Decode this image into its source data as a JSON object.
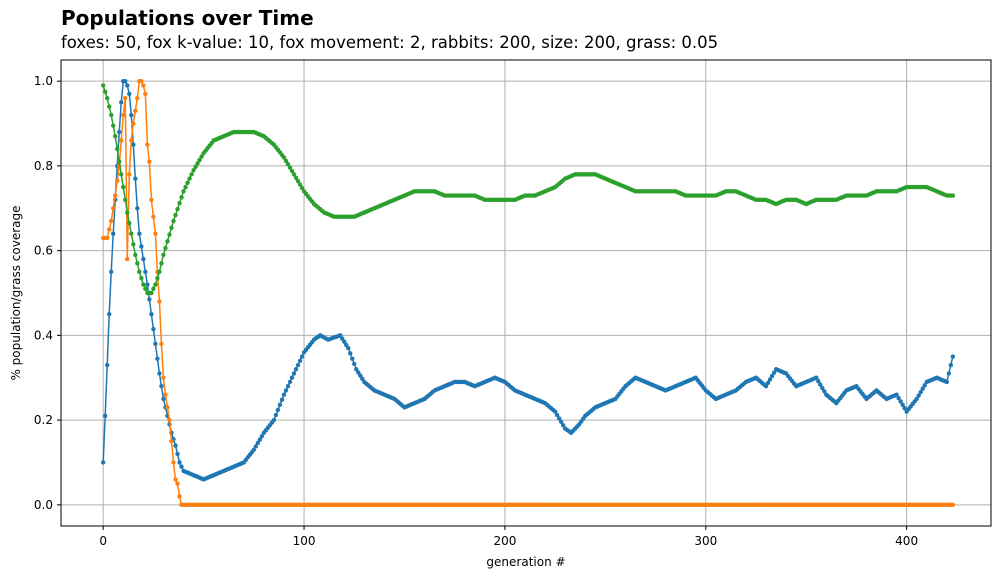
{
  "header": {
    "title": "Populations over Time",
    "subtitle": "foxes: 50, fox k-value: 10, fox movement: 2, rabbits: 200, size: 200, grass: 0.05"
  },
  "chart_data": {
    "type": "line",
    "title": "Populations over Time",
    "subtitle": "foxes: 50, fox k-value: 10, fox movement: 2, rabbits: 200, size: 200, grass: 0.05",
    "xlabel": "generation #",
    "ylabel": "% population/grass coverage",
    "xlim": [
      -21,
      442
    ],
    "ylim": [
      -0.05,
      1.05
    ],
    "xticks": [
      0,
      100,
      200,
      300,
      400
    ],
    "xtick_labels": [
      "0",
      "100",
      "200",
      "300",
      "400"
    ],
    "yticks": [
      0.0,
      0.2,
      0.4,
      0.6,
      0.8,
      1.0
    ],
    "ytick_labels": [
      "0.0",
      "0.2",
      "0.4",
      "0.6",
      "0.8",
      "1.0"
    ],
    "grid": true,
    "legend": "none",
    "marker": "dot",
    "series": [
      {
        "color": "#1f77b4",
        "points": [
          [
            0,
            0.1
          ],
          [
            1,
            0.21
          ],
          [
            2,
            0.33
          ],
          [
            3,
            0.45
          ],
          [
            4,
            0.55
          ],
          [
            5,
            0.64
          ],
          [
            6,
            0.72
          ],
          [
            7,
            0.8
          ],
          [
            8,
            0.88
          ],
          [
            9,
            0.95
          ],
          [
            10,
            1.0
          ],
          [
            11,
            1.0
          ],
          [
            12,
            0.99
          ],
          [
            13,
            0.97
          ],
          [
            14,
            0.92
          ],
          [
            15,
            0.85
          ],
          [
            16,
            0.77
          ],
          [
            17,
            0.7
          ],
          [
            18,
            0.64
          ],
          [
            20,
            0.58
          ],
          [
            22,
            0.52
          ],
          [
            24,
            0.45
          ],
          [
            26,
            0.38
          ],
          [
            28,
            0.31
          ],
          [
            30,
            0.25
          ],
          [
            32,
            0.21
          ],
          [
            34,
            0.17
          ],
          [
            36,
            0.14
          ],
          [
            38,
            0.1
          ],
          [
            40,
            0.08
          ],
          [
            45,
            0.07
          ],
          [
            50,
            0.06
          ],
          [
            55,
            0.07
          ],
          [
            60,
            0.08
          ],
          [
            65,
            0.09
          ],
          [
            70,
            0.1
          ],
          [
            75,
            0.13
          ],
          [
            80,
            0.17
          ],
          [
            85,
            0.2
          ],
          [
            90,
            0.26
          ],
          [
            95,
            0.31
          ],
          [
            100,
            0.36
          ],
          [
            105,
            0.39
          ],
          [
            108,
            0.4
          ],
          [
            112,
            0.39
          ],
          [
            118,
            0.4
          ],
          [
            122,
            0.37
          ],
          [
            126,
            0.32
          ],
          [
            130,
            0.29
          ],
          [
            135,
            0.27
          ],
          [
            140,
            0.26
          ],
          [
            145,
            0.25
          ],
          [
            150,
            0.23
          ],
          [
            155,
            0.24
          ],
          [
            160,
            0.25
          ],
          [
            165,
            0.27
          ],
          [
            170,
            0.28
          ],
          [
            175,
            0.29
          ],
          [
            180,
            0.29
          ],
          [
            185,
            0.28
          ],
          [
            190,
            0.29
          ],
          [
            195,
            0.3
          ],
          [
            200,
            0.29
          ],
          [
            205,
            0.27
          ],
          [
            210,
            0.26
          ],
          [
            215,
            0.25
          ],
          [
            220,
            0.24
          ],
          [
            225,
            0.22
          ],
          [
            230,
            0.18
          ],
          [
            233,
            0.17
          ],
          [
            237,
            0.19
          ],
          [
            240,
            0.21
          ],
          [
            245,
            0.23
          ],
          [
            250,
            0.24
          ],
          [
            255,
            0.25
          ],
          [
            260,
            0.28
          ],
          [
            265,
            0.3
          ],
          [
            270,
            0.29
          ],
          [
            275,
            0.28
          ],
          [
            280,
            0.27
          ],
          [
            285,
            0.28
          ],
          [
            290,
            0.29
          ],
          [
            295,
            0.3
          ],
          [
            300,
            0.27
          ],
          [
            305,
            0.25
          ],
          [
            310,
            0.26
          ],
          [
            315,
            0.27
          ],
          [
            320,
            0.29
          ],
          [
            325,
            0.3
          ],
          [
            330,
            0.28
          ],
          [
            335,
            0.32
          ],
          [
            340,
            0.31
          ],
          [
            345,
            0.28
          ],
          [
            350,
            0.29
          ],
          [
            355,
            0.3
          ],
          [
            360,
            0.26
          ],
          [
            365,
            0.24
          ],
          [
            370,
            0.27
          ],
          [
            375,
            0.28
          ],
          [
            380,
            0.25
          ],
          [
            385,
            0.27
          ],
          [
            390,
            0.25
          ],
          [
            395,
            0.26
          ],
          [
            400,
            0.22
          ],
          [
            405,
            0.25
          ],
          [
            410,
            0.29
          ],
          [
            415,
            0.3
          ],
          [
            420,
            0.29
          ],
          [
            423,
            0.35
          ]
        ]
      },
      {
        "color": "#ff7f0e",
        "points": [
          [
            0,
            0.63
          ],
          [
            2,
            0.63
          ],
          [
            4,
            0.67
          ],
          [
            6,
            0.73
          ],
          [
            8,
            0.8
          ],
          [
            10,
            0.92
          ],
          [
            11,
            0.96
          ],
          [
            12,
            0.58
          ],
          [
            13,
            0.78
          ],
          [
            14,
            0.86
          ],
          [
            15,
            0.9
          ],
          [
            16,
            0.93
          ],
          [
            17,
            0.96
          ],
          [
            18,
            1.0
          ],
          [
            19,
            1.0
          ],
          [
            20,
            0.99
          ],
          [
            21,
            0.97
          ],
          [
            22,
            0.85
          ],
          [
            23,
            0.81
          ],
          [
            24,
            0.72
          ],
          [
            25,
            0.68
          ],
          [
            26,
            0.64
          ],
          [
            27,
            0.55
          ],
          [
            28,
            0.48
          ],
          [
            29,
            0.38
          ],
          [
            30,
            0.3
          ],
          [
            31,
            0.26
          ],
          [
            32,
            0.23
          ],
          [
            33,
            0.2
          ],
          [
            34,
            0.15
          ],
          [
            35,
            0.1
          ],
          [
            36,
            0.06
          ],
          [
            37,
            0.05
          ],
          [
            38,
            0.02
          ],
          [
            39,
            0.0
          ],
          [
            100,
            0.0
          ],
          [
            200,
            0.0
          ],
          [
            300,
            0.0
          ],
          [
            400,
            0.0
          ],
          [
            423,
            0.0
          ]
        ]
      },
      {
        "color": "#2ca02c",
        "points": [
          [
            0,
            0.99
          ],
          [
            2,
            0.96
          ],
          [
            4,
            0.92
          ],
          [
            6,
            0.87
          ],
          [
            8,
            0.81
          ],
          [
            10,
            0.75
          ],
          [
            12,
            0.69
          ],
          [
            14,
            0.64
          ],
          [
            16,
            0.59
          ],
          [
            18,
            0.55
          ],
          [
            20,
            0.52
          ],
          [
            22,
            0.5
          ],
          [
            24,
            0.5
          ],
          [
            26,
            0.52
          ],
          [
            28,
            0.55
          ],
          [
            30,
            0.59
          ],
          [
            35,
            0.67
          ],
          [
            40,
            0.74
          ],
          [
            45,
            0.79
          ],
          [
            50,
            0.83
          ],
          [
            55,
            0.86
          ],
          [
            60,
            0.87
          ],
          [
            65,
            0.88
          ],
          [
            70,
            0.88
          ],
          [
            75,
            0.88
          ],
          [
            80,
            0.87
          ],
          [
            85,
            0.85
          ],
          [
            90,
            0.82
          ],
          [
            95,
            0.78
          ],
          [
            100,
            0.74
          ],
          [
            105,
            0.71
          ],
          [
            110,
            0.69
          ],
          [
            115,
            0.68
          ],
          [
            120,
            0.68
          ],
          [
            125,
            0.68
          ],
          [
            130,
            0.69
          ],
          [
            135,
            0.7
          ],
          [
            140,
            0.71
          ],
          [
            145,
            0.72
          ],
          [
            150,
            0.73
          ],
          [
            155,
            0.74
          ],
          [
            160,
            0.74
          ],
          [
            165,
            0.74
          ],
          [
            170,
            0.73
          ],
          [
            175,
            0.73
          ],
          [
            180,
            0.73
          ],
          [
            185,
            0.73
          ],
          [
            190,
            0.72
          ],
          [
            195,
            0.72
          ],
          [
            200,
            0.72
          ],
          [
            205,
            0.72
          ],
          [
            210,
            0.73
          ],
          [
            215,
            0.73
          ],
          [
            220,
            0.74
          ],
          [
            225,
            0.75
          ],
          [
            230,
            0.77
          ],
          [
            235,
            0.78
          ],
          [
            240,
            0.78
          ],
          [
            245,
            0.78
          ],
          [
            250,
            0.77
          ],
          [
            255,
            0.76
          ],
          [
            260,
            0.75
          ],
          [
            265,
            0.74
          ],
          [
            270,
            0.74
          ],
          [
            275,
            0.74
          ],
          [
            280,
            0.74
          ],
          [
            285,
            0.74
          ],
          [
            290,
            0.73
          ],
          [
            295,
            0.73
          ],
          [
            300,
            0.73
          ],
          [
            305,
            0.73
          ],
          [
            310,
            0.74
          ],
          [
            315,
            0.74
          ],
          [
            320,
            0.73
          ],
          [
            325,
            0.72
          ],
          [
            330,
            0.72
          ],
          [
            335,
            0.71
          ],
          [
            340,
            0.72
          ],
          [
            345,
            0.72
          ],
          [
            350,
            0.71
          ],
          [
            355,
            0.72
          ],
          [
            360,
            0.72
          ],
          [
            365,
            0.72
          ],
          [
            370,
            0.73
          ],
          [
            375,
            0.73
          ],
          [
            380,
            0.73
          ],
          [
            385,
            0.74
          ],
          [
            390,
            0.74
          ],
          [
            395,
            0.74
          ],
          [
            400,
            0.75
          ],
          [
            405,
            0.75
          ],
          [
            410,
            0.75
          ],
          [
            415,
            0.74
          ],
          [
            420,
            0.73
          ],
          [
            423,
            0.73
          ]
        ]
      }
    ]
  }
}
